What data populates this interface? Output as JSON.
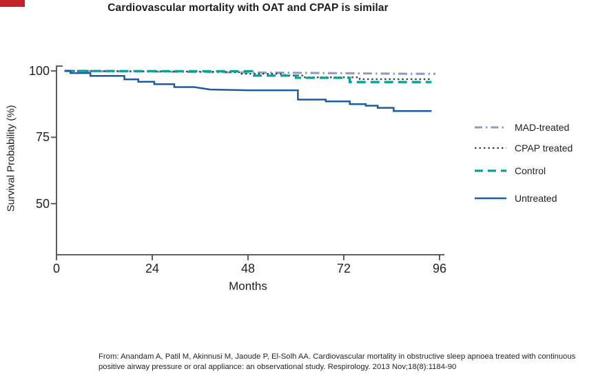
{
  "decor": {
    "corner_mark_color": "#c5202a"
  },
  "citation": {
    "line1": "From: Anandam A, Patil M, Akinnusi M, Jaoude P, El-Solh AA. Cardiovascular mortality in obstructive sleep apnoea treated with continuous",
    "line2": "positive airway pressure or oral appliance: an observational study. Respirology. 2013 Nov;18(8):1184-90"
  },
  "chart_data": {
    "type": "line",
    "subtype": "kaplan-meier-step",
    "title": "Cardiovascular mortality with OAT and CPAP is similar",
    "xlabel": "Months",
    "ylabel": "Survival Probability (%)",
    "xlim": [
      0,
      96
    ],
    "ylim": [
      31,
      100
    ],
    "x_ticks": [
      0,
      24,
      48,
      72,
      96
    ],
    "y_ticks": [
      100,
      75,
      50
    ],
    "grid": false,
    "legend_position": "right",
    "axis_color": "#4a4a4a",
    "series": [
      {
        "name": "MAD-treated",
        "style": "dash-dot",
        "color": "#8b9bc5",
        "points": [
          [
            2,
            100
          ],
          [
            10,
            99.9
          ],
          [
            20,
            99.8
          ],
          [
            30,
            99.7
          ],
          [
            40,
            99.5
          ],
          [
            50,
            99.4
          ],
          [
            58,
            99.3
          ],
          [
            66,
            99.2
          ],
          [
            74,
            99.1
          ],
          [
            82,
            99.0
          ],
          [
            88,
            98.9
          ],
          [
            95,
            98.9
          ]
        ]
      },
      {
        "name": "CPAP treated",
        "style": "dotted",
        "color": "#3d3d3d",
        "points": [
          [
            2,
            100
          ],
          [
            20,
            99.9
          ],
          [
            40,
            99.7
          ],
          [
            46,
            99.5
          ],
          [
            46,
            98.9
          ],
          [
            56,
            98.9
          ],
          [
            58,
            98.3
          ],
          [
            62,
            98.3
          ],
          [
            62,
            97.6
          ],
          [
            76,
            97.6
          ],
          [
            76,
            96.9
          ],
          [
            94,
            96.9
          ]
        ]
      },
      {
        "name": "Control",
        "style": "dashed",
        "color": "#09a195",
        "points": [
          [
            2,
            100
          ],
          [
            30,
            99.9
          ],
          [
            49,
            99.9
          ],
          [
            49,
            98.2
          ],
          [
            60,
            98.2
          ],
          [
            60,
            97.4
          ],
          [
            73.5,
            97.4
          ],
          [
            73.5,
            95.8
          ],
          [
            94,
            95.8
          ]
        ]
      },
      {
        "name": "Untreated",
        "style": "solid",
        "color": "#1a5ca3",
        "points": [
          [
            2,
            100
          ],
          [
            3.5,
            100
          ],
          [
            3.5,
            99.2
          ],
          [
            8.5,
            99.2
          ],
          [
            8.5,
            98.1
          ],
          [
            17,
            98.1
          ],
          [
            17,
            96.8
          ],
          [
            20.5,
            96.8
          ],
          [
            20.5,
            95.9
          ],
          [
            24.5,
            95.9
          ],
          [
            24.5,
            95.0
          ],
          [
            29.5,
            95.0
          ],
          [
            29.5,
            93.9
          ],
          [
            34.5,
            93.9
          ],
          [
            38.5,
            93.0
          ],
          [
            48,
            92.7
          ],
          [
            60.5,
            92.7
          ],
          [
            60.5,
            89.2
          ],
          [
            67.5,
            89.2
          ],
          [
            67.5,
            88.5
          ],
          [
            73.5,
            88.5
          ],
          [
            73.5,
            87.5
          ],
          [
            77.5,
            87.5
          ],
          [
            77.5,
            86.9
          ],
          [
            80.5,
            86.9
          ],
          [
            80.5,
            86.1
          ],
          [
            84.5,
            86.1
          ],
          [
            84.5,
            84.9
          ],
          [
            94,
            84.9
          ]
        ]
      }
    ]
  }
}
